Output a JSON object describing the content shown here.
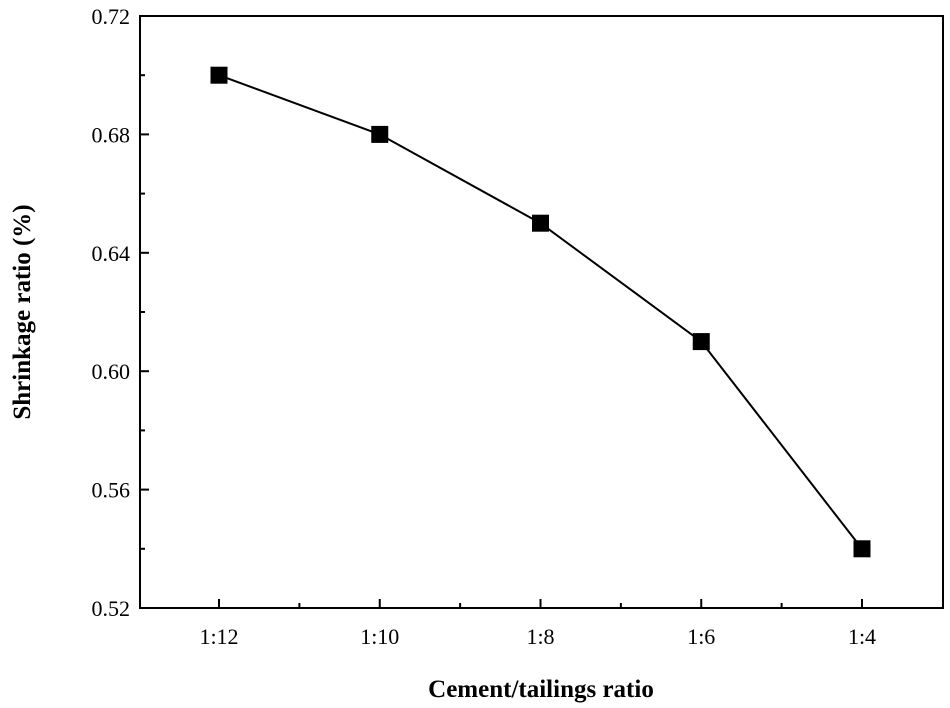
{
  "chart_data": {
    "type": "line",
    "title": "",
    "xlabel": "Cement/tailings ratio",
    "ylabel": "Shrinkage ratio (%)",
    "categories": [
      "1:12",
      "1:10",
      "1:8",
      "1:6",
      "1:4"
    ],
    "series": [
      {
        "values": [
          0.7,
          0.68,
          0.65,
          0.61,
          0.54
        ]
      }
    ],
    "ylim": [
      0.52,
      0.72
    ],
    "yticks": [
      "0.52",
      "0.56",
      "0.60",
      "0.64",
      "0.68",
      "0.72"
    ],
    "ytick_values": [
      0.52,
      0.56,
      0.6,
      0.64,
      0.68,
      0.72
    ],
    "marker": "filled-square",
    "line_color": "#000000",
    "grid": false,
    "legend": "none"
  }
}
